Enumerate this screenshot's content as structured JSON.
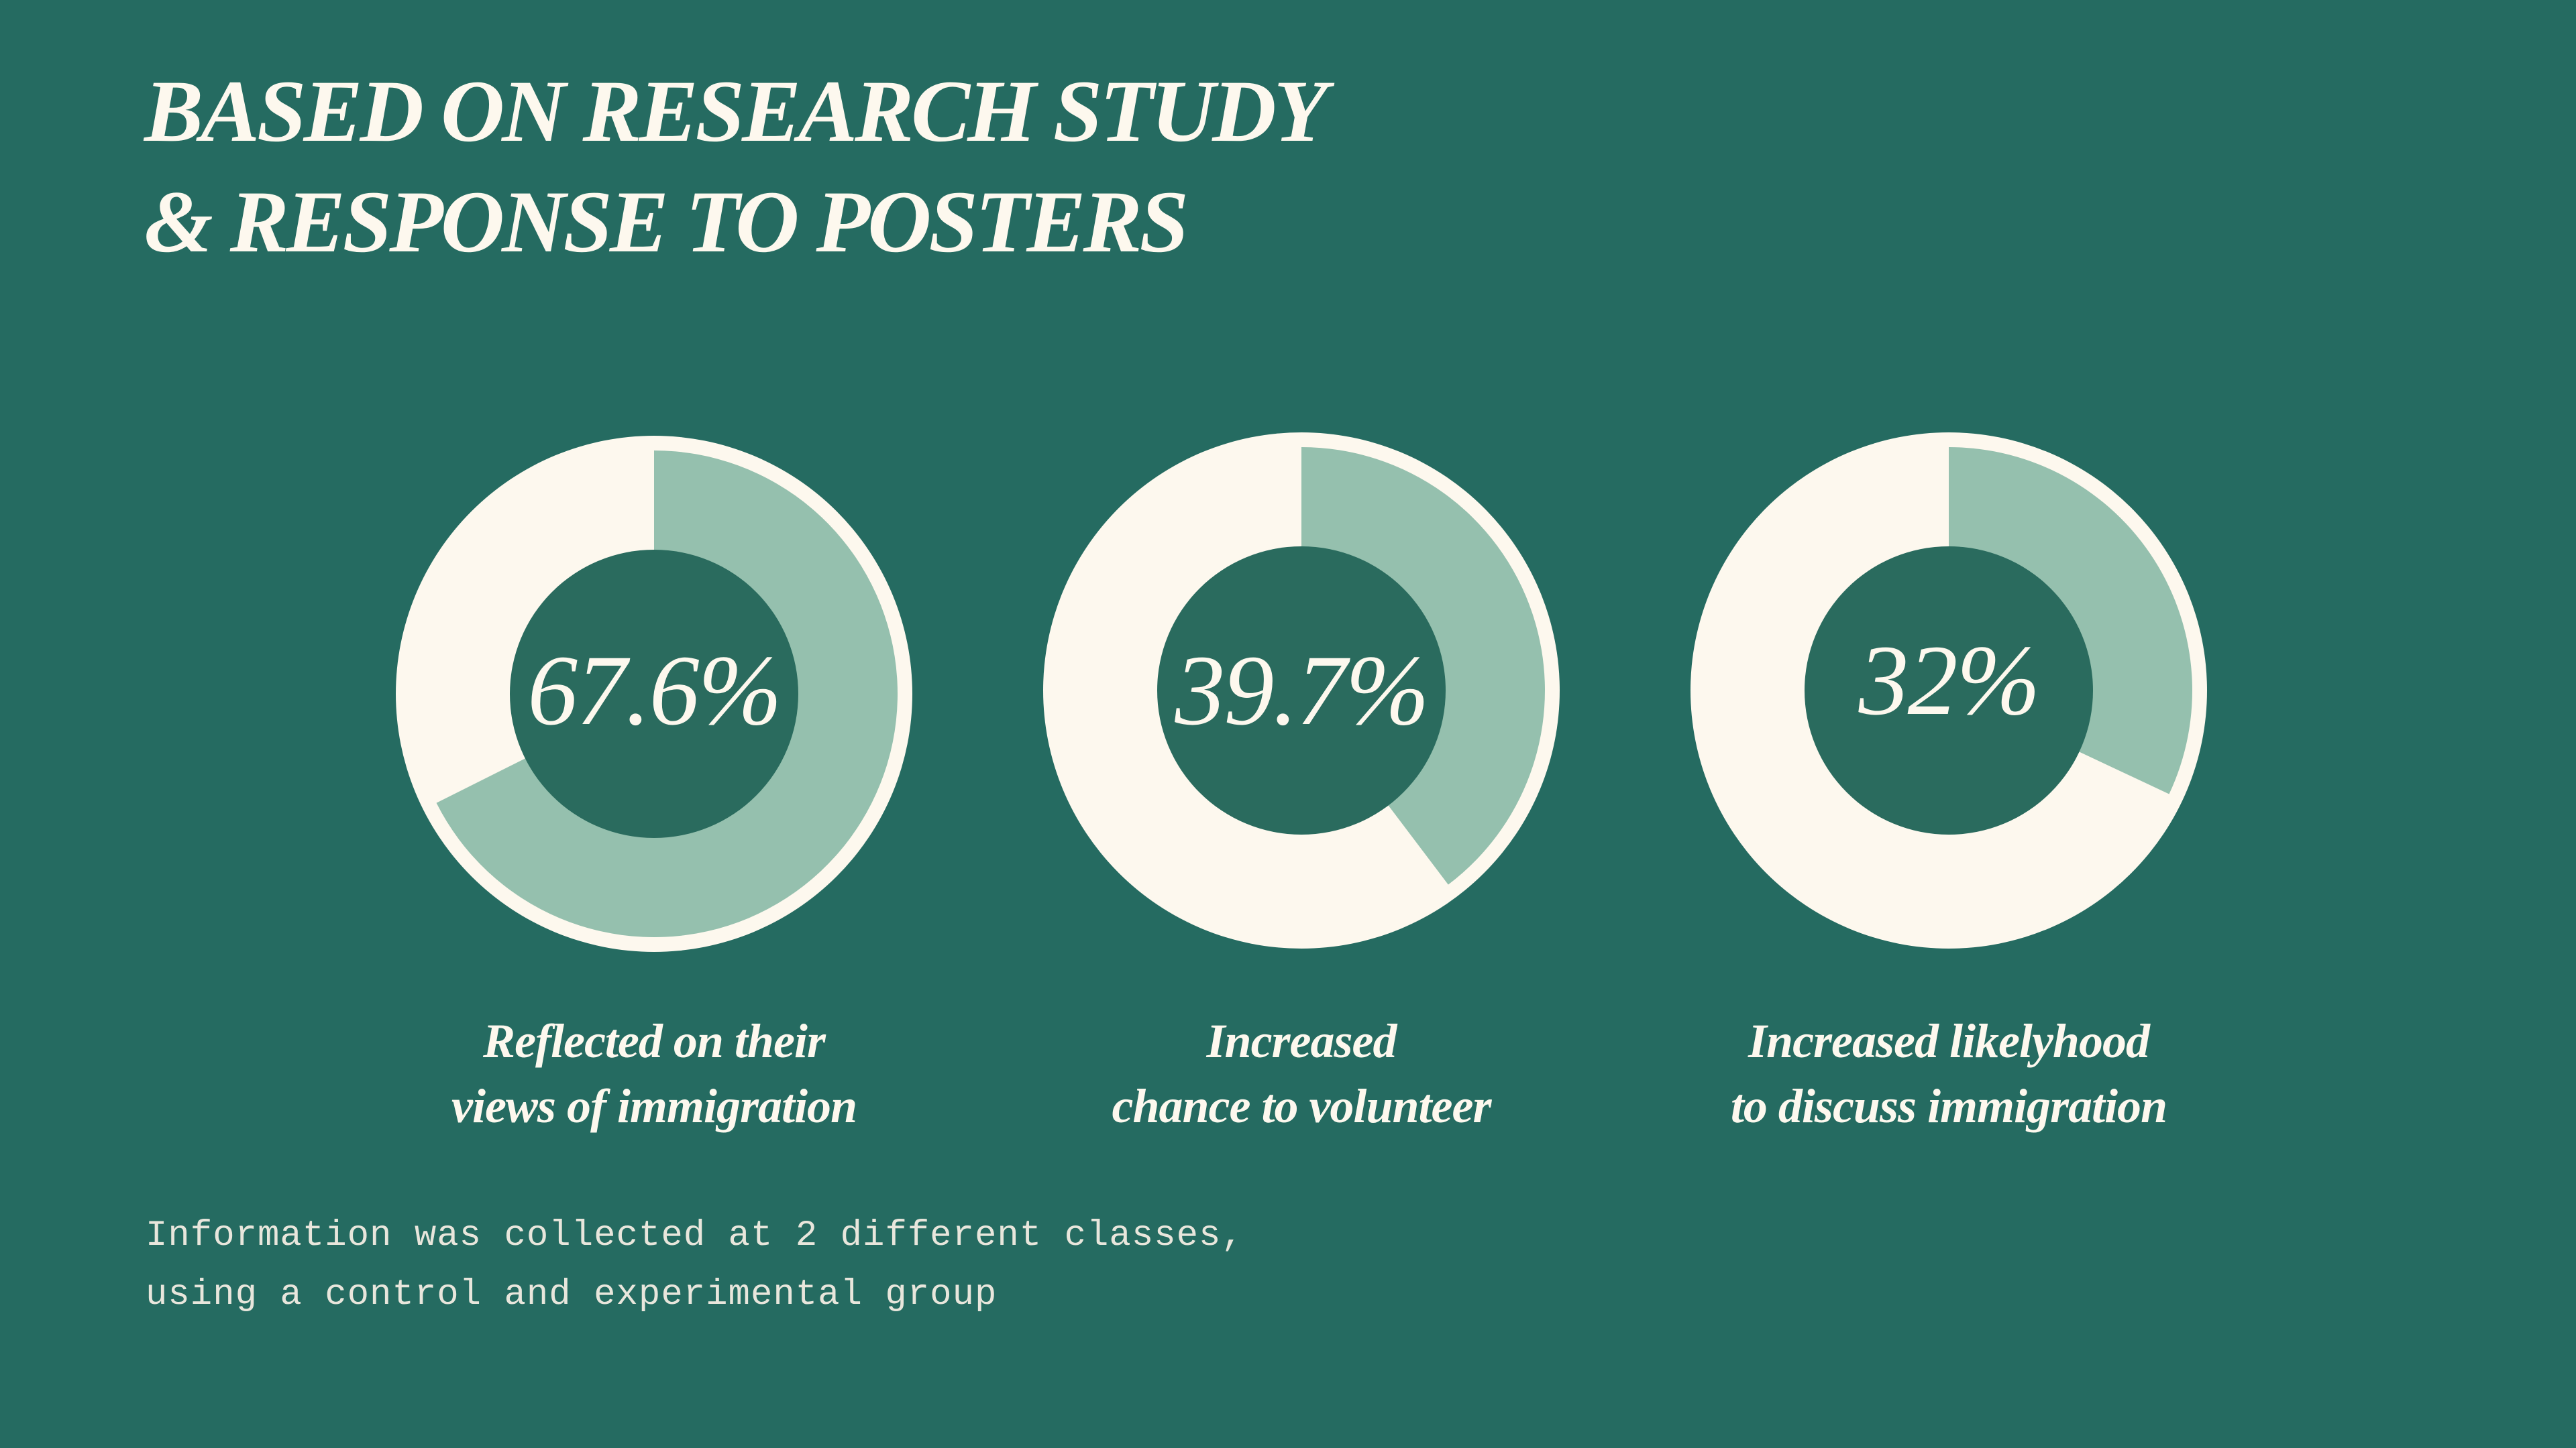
{
  "title": {
    "line1": "BASED ON RESEARCH STUDY",
    "line2": "& RESPONSE TO POSTERS"
  },
  "colors": {
    "background": "#256b61",
    "ring_base": "#fdf8ee",
    "ring_fill": "#95c0ae",
    "center": "#2a6b5e",
    "text": "#fdf8ee"
  },
  "chart_data": {
    "type": "pie",
    "charts": [
      {
        "value": 67.6,
        "label": "67.6%",
        "caption": [
          "Reflected on their",
          "views of immigration"
        ]
      },
      {
        "value": 39.7,
        "label": "39.7%",
        "caption": [
          "Increased",
          "chance to volunteer"
        ]
      },
      {
        "value": 32,
        "label": "32%",
        "caption": [
          "Increased likelyhood",
          "to discuss immigration"
        ]
      }
    ]
  },
  "footnote": {
    "line1": "Information was collected at 2 different classes,",
    "line2": "using a control and experimental group"
  }
}
